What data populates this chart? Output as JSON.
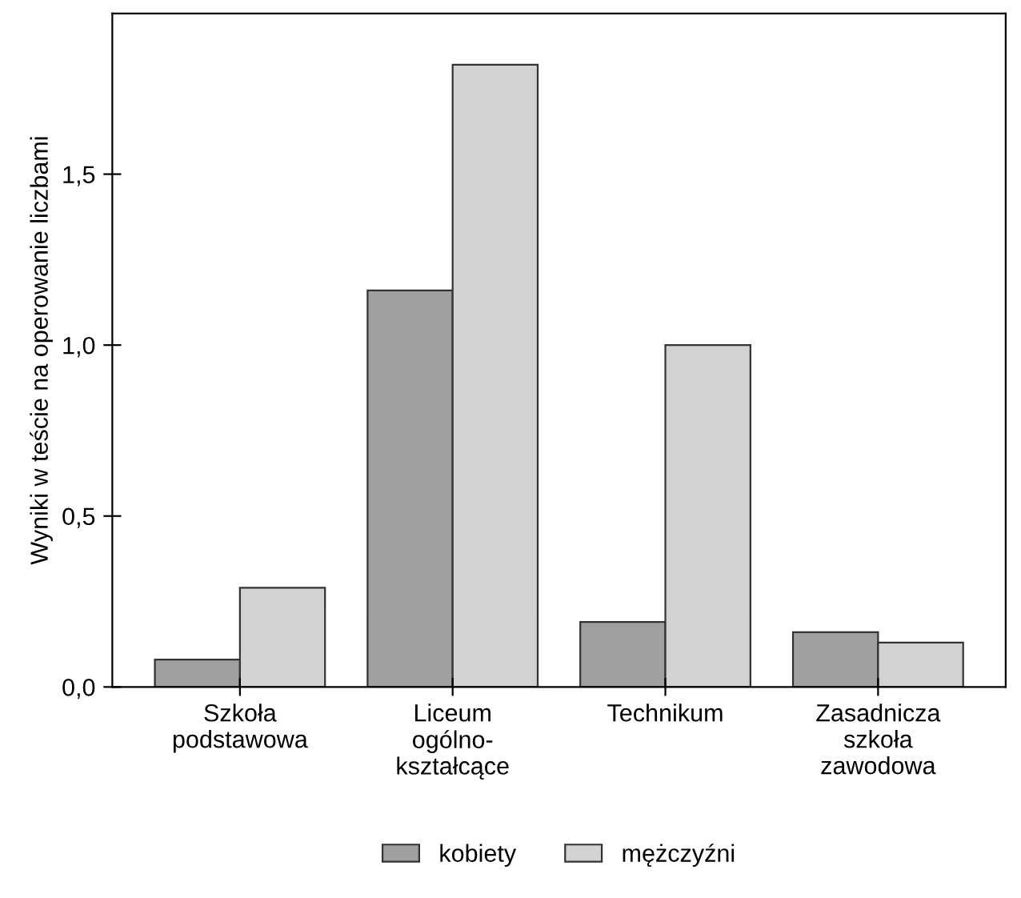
{
  "chart_data": {
    "type": "bar",
    "ylabel": "Wyniki w teście na operowanie liczbami",
    "categories": [
      "Szkoła\npodstawowa",
      "Liceum\nogólno-\nkształcące",
      "Technikum",
      "Zasadnicza\nszkoła\nzawodowa"
    ],
    "series": [
      {
        "name": "kobiety",
        "color": "#a0a0a0",
        "values": [
          0.08,
          1.16,
          0.19,
          0.16
        ]
      },
      {
        "name": "mężczyźni",
        "color": "#d2d2d2",
        "values": [
          0.29,
          1.82,
          1.0,
          0.13
        ]
      }
    ],
    "ylim": [
      0,
      1.97
    ],
    "yticks": [
      {
        "value": 0,
        "label": "0,0"
      },
      {
        "value": 0.5,
        "label": "0,5"
      },
      {
        "value": 1.0,
        "label": "1,0"
      },
      {
        "value": 1.5,
        "label": "1,5"
      }
    ],
    "grid": false,
    "legend": "bottom"
  }
}
